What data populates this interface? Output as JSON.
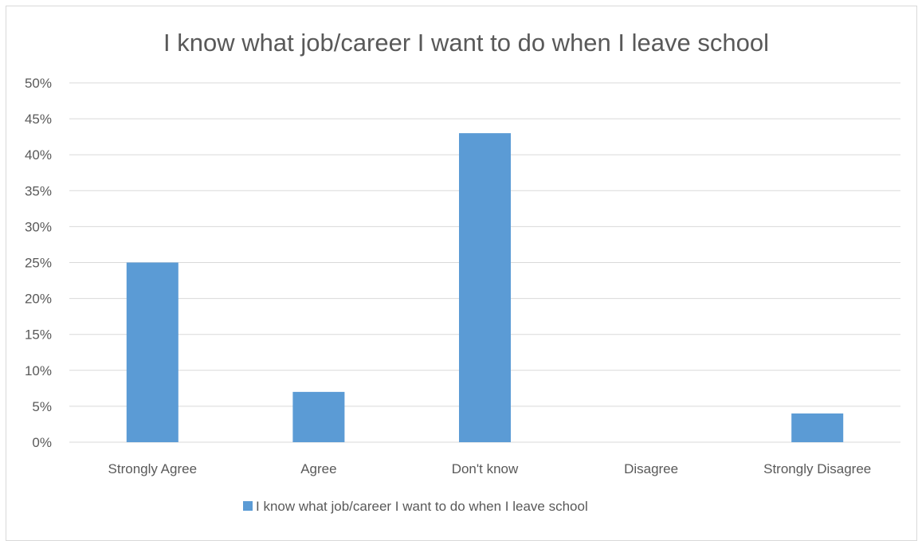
{
  "chart_data": {
    "type": "bar",
    "title": "I know what job/career I want to do when I leave school",
    "xlabel": "",
    "ylabel": "",
    "categories": [
      "Strongly Agree",
      "Agree",
      "Don't know",
      "Disagree",
      "Strongly Disagree"
    ],
    "series": [
      {
        "name": "I know what job/career I want to do when I leave school",
        "values": [
          25,
          7,
          43,
          0,
          4
        ],
        "color": "#5b9bd5"
      }
    ],
    "ylim": [
      0,
      50
    ],
    "ytick_step": 5,
    "ytick_labels": [
      "0%",
      "5%",
      "10%",
      "15%",
      "20%",
      "25%",
      "30%",
      "35%",
      "40%",
      "45%",
      "50%"
    ],
    "value_format": "percent",
    "grid": true,
    "gridline_color": "#d9d9d9",
    "legend_position": "bottom"
  }
}
